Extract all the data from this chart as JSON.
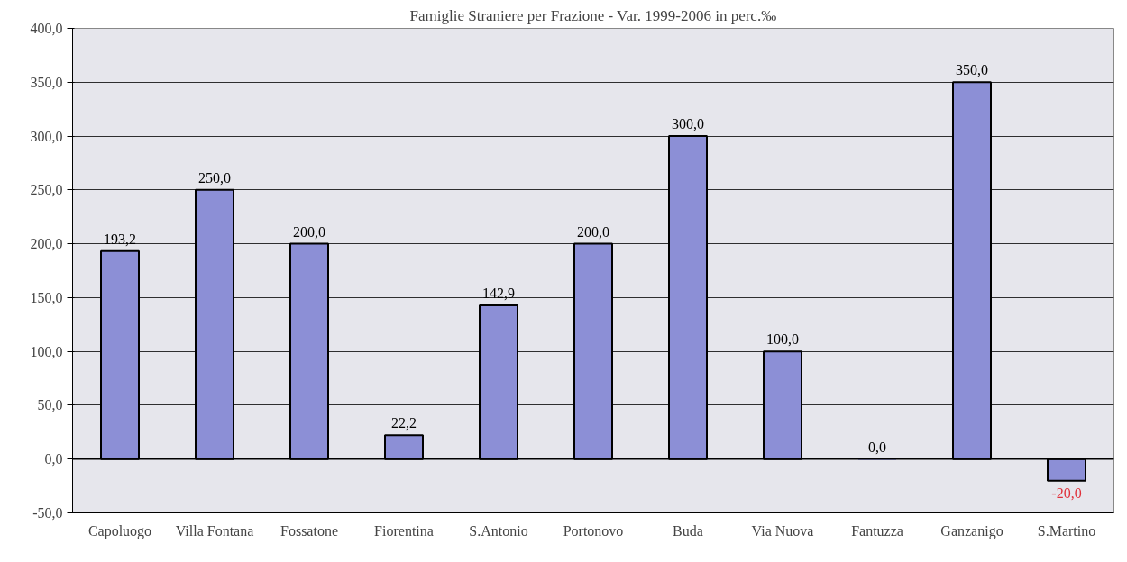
{
  "chart_data": {
    "type": "bar",
    "title": "Famiglie Straniere per Frazione - Var. 1999-2006 in perc.‰",
    "categories": [
      "Capoluogo",
      "Villa Fontana",
      "Fossatone",
      "Fiorentina",
      "S.Antonio",
      "Portonovo",
      "Buda",
      "Via Nuova",
      "Fantuzza",
      "Ganzanigo",
      "S.Martino"
    ],
    "values": [
      193.2,
      250.0,
      200.0,
      22.2,
      142.9,
      200.0,
      300.0,
      100.0,
      0.0,
      350.0,
      -20.0
    ],
    "value_labels": [
      "193,2",
      "250,0",
      "200,0",
      "22,2",
      "142,9",
      "200,0",
      "300,0",
      "100,0",
      "0,0",
      "350,0",
      "-20,0"
    ],
    "color": "#8c8fd6",
    "ylim": [
      -50,
      400
    ],
    "yticks": [
      {
        "value": -50,
        "label": "-50,0"
      },
      {
        "value": 0,
        "label": "0,0"
      },
      {
        "value": 50,
        "label": "50,0"
      },
      {
        "value": 100,
        "label": "100,0"
      },
      {
        "value": 150,
        "label": "150,0"
      },
      {
        "value": 200,
        "label": "200,0"
      },
      {
        "value": 250,
        "label": "250,0"
      },
      {
        "value": 300,
        "label": "300,0"
      },
      {
        "value": 350,
        "label": "350,0"
      },
      {
        "value": 400,
        "label": "400,0"
      }
    ],
    "grid": "y"
  }
}
